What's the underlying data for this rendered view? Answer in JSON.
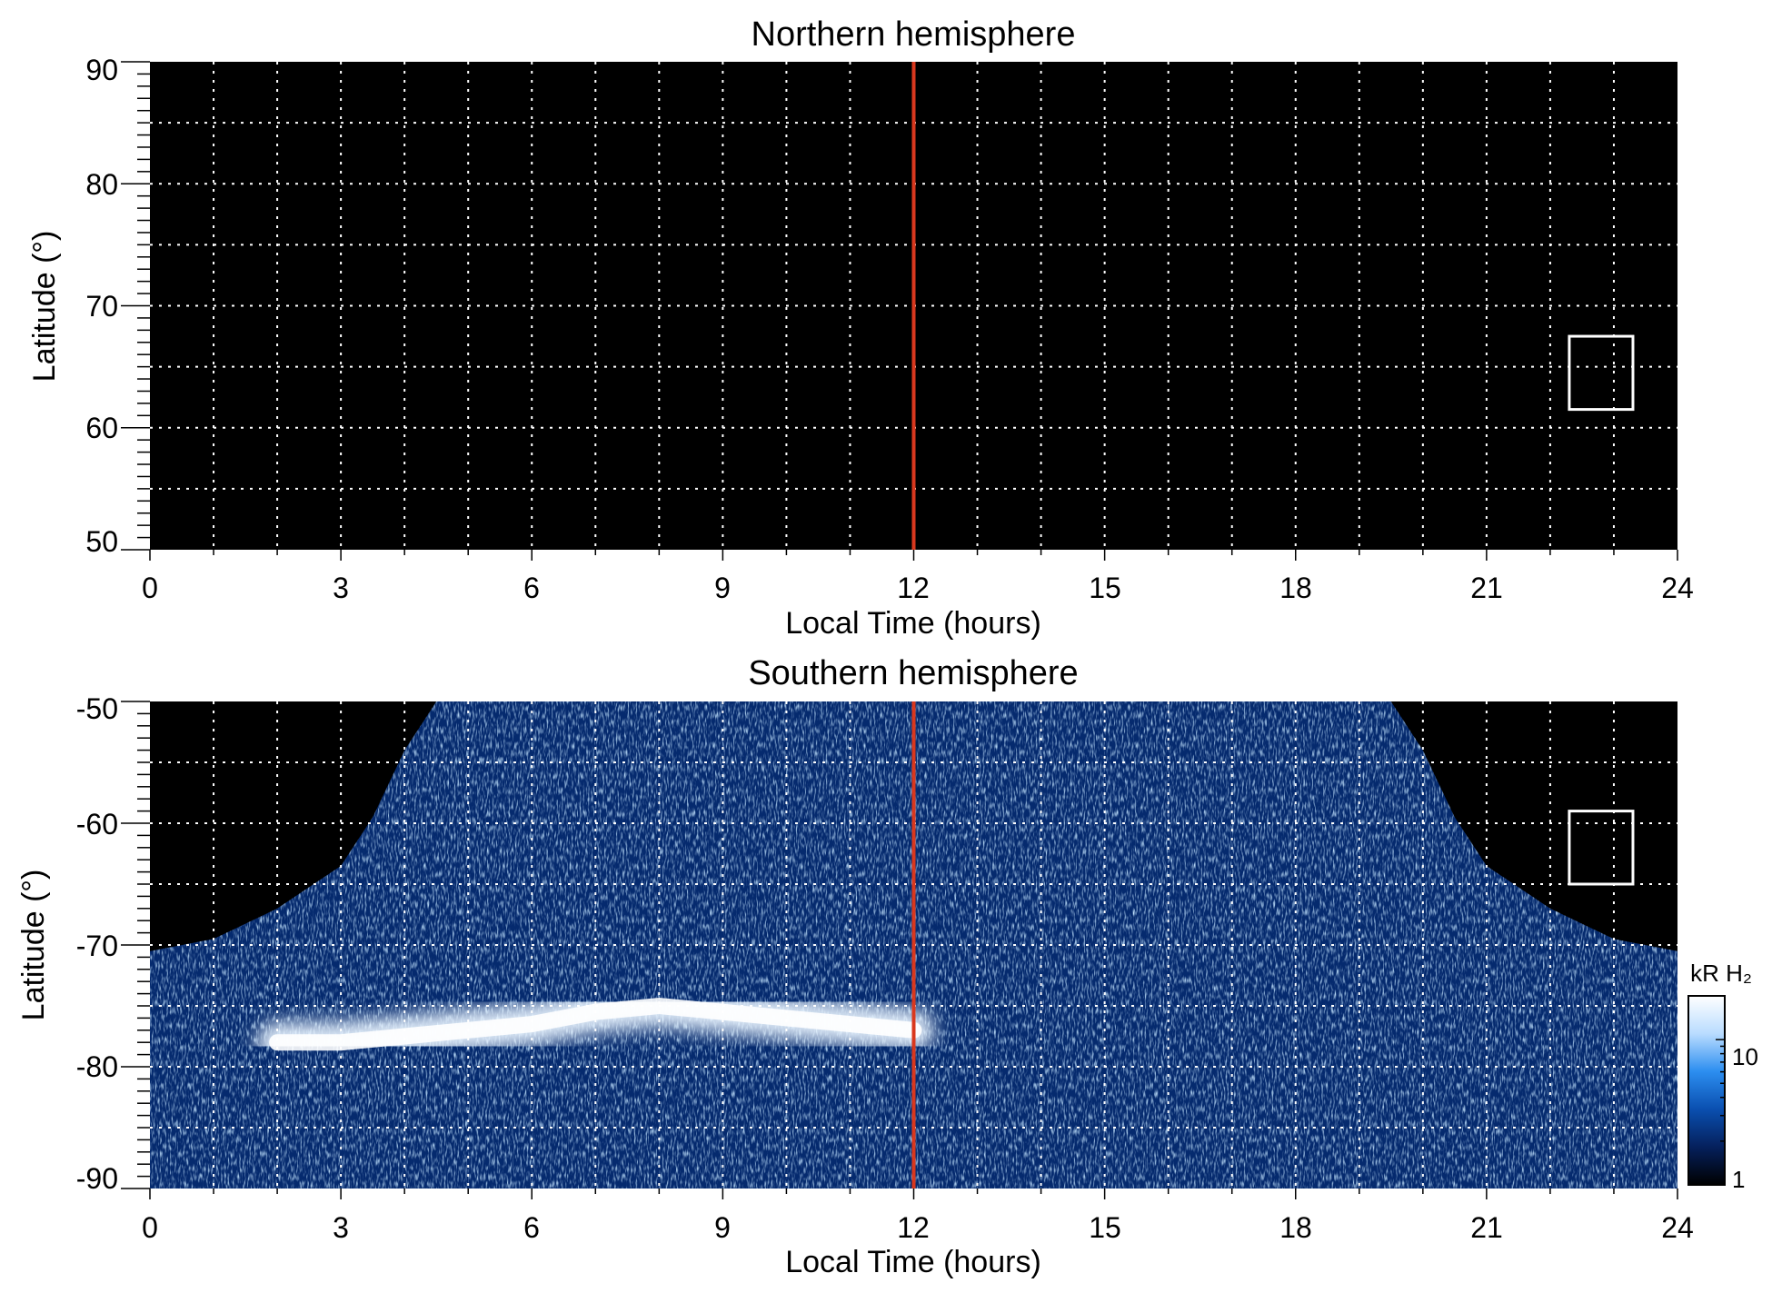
{
  "chart_data": [
    {
      "type": "heatmap",
      "title": "Northern hemisphere",
      "xlabel": "Local Time (hours)",
      "ylabel": "Latitude (°)",
      "xlim": [
        0,
        24
      ],
      "ylim": [
        50,
        90
      ],
      "x_ticks": [
        "0",
        "3",
        "6",
        "9",
        "12",
        "15",
        "18",
        "21",
        "24"
      ],
      "y_ticks": [
        "90",
        "80",
        "70",
        "60",
        "50"
      ],
      "grid": true,
      "background": "#000000",
      "reference_line": {
        "x": 12,
        "color": "#d9381e"
      },
      "marker_box": {
        "x": [
          22.3,
          23.3
        ],
        "y": [
          61.5,
          67.5
        ],
        "color": "#ffffff"
      },
      "emission": "none"
    },
    {
      "type": "heatmap",
      "title": "Southern hemisphere",
      "xlabel": "Local Time (hours)",
      "ylabel": "Latitude (°)",
      "xlim": [
        0,
        24
      ],
      "ylim": [
        -90,
        -50
      ],
      "x_ticks": [
        "0",
        "3",
        "6",
        "9",
        "12",
        "15",
        "18",
        "21",
        "24"
      ],
      "y_ticks": [
        "-50",
        "-60",
        "-70",
        "-80",
        "-90"
      ],
      "grid": true,
      "background": "#000000",
      "reference_line": {
        "x": 12,
        "color": "#d9381e"
      },
      "marker_box": {
        "x": [
          22.3,
          23.3
        ],
        "y": [
          -65,
          -59
        ],
        "color": "#ffffff"
      },
      "coverage_boundary": {
        "local_time": [
          0,
          1,
          2,
          3,
          3.5,
          4,
          4.5,
          12,
          19.5,
          20,
          20.5,
          21,
          22,
          23,
          24
        ],
        "latitude": [
          -70.5,
          -69.5,
          -67,
          -63.5,
          -59.5,
          -54,
          -50,
          -50,
          -50,
          -54,
          -59.5,
          -63.5,
          -67,
          -69.5,
          -70.5
        ]
      },
      "bright_band": {
        "local_time": [
          2,
          3,
          4,
          5,
          6,
          7,
          8,
          9,
          10,
          11,
          12
        ],
        "latitude": [
          -78,
          -78,
          -77.5,
          -77,
          -76.5,
          -75.5,
          -75,
          -75.5,
          -76,
          -76.5,
          -77
        ]
      },
      "colorbar": {
        "label": "kR H₂",
        "ticks": [
          "1",
          "10"
        ],
        "scale": "log",
        "range": [
          1,
          20
        ],
        "colors": [
          "#000000",
          "#05205c",
          "#0a4fb0",
          "#2c8ef0",
          "#b9dcff",
          "#ffffff"
        ]
      }
    }
  ]
}
